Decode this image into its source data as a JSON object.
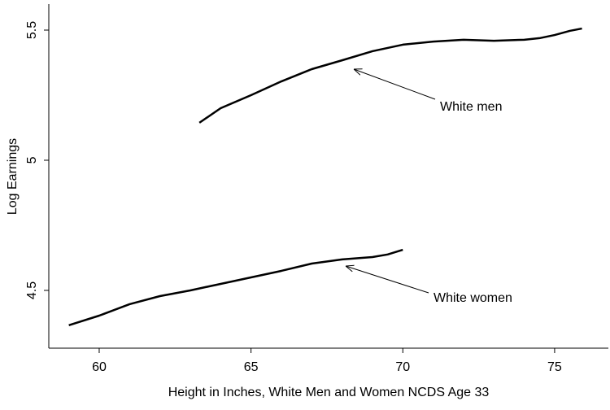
{
  "chart_data": {
    "type": "line",
    "x_label": "Height in Inches, White Men and Women NCDS Age 33",
    "y_label": "Log Earnings",
    "xlim": [
      58.34,
      76.77
    ],
    "ylim": [
      4.278,
      5.6
    ],
    "xticks": [
      60,
      65,
      70,
      75
    ],
    "yticks": [
      4.5,
      5,
      5.5
    ],
    "annotations": [
      "White men",
      "White women"
    ],
    "series": [
      {
        "color": "#000000",
        "x": [
          63.3,
          64,
          65,
          66,
          67,
          68,
          69,
          70,
          71,
          72,
          73,
          74,
          74.5,
          75,
          75.5,
          75.9
        ],
        "values": [
          5.144,
          5.2,
          5.25,
          5.303,
          5.35,
          5.384,
          5.419,
          5.444,
          5.456,
          5.463,
          5.459,
          5.463,
          5.469,
          5.481,
          5.497,
          5.506
        ]
      },
      {
        "color": "#000000",
        "x": [
          59,
          60,
          61,
          62,
          63,
          64,
          65,
          66,
          67,
          68,
          69,
          69.5,
          70
        ],
        "values": [
          4.366,
          4.403,
          4.447,
          4.478,
          4.5,
          4.525,
          4.55,
          4.575,
          4.603,
          4.619,
          4.628,
          4.638,
          4.656
        ]
      }
    ]
  }
}
